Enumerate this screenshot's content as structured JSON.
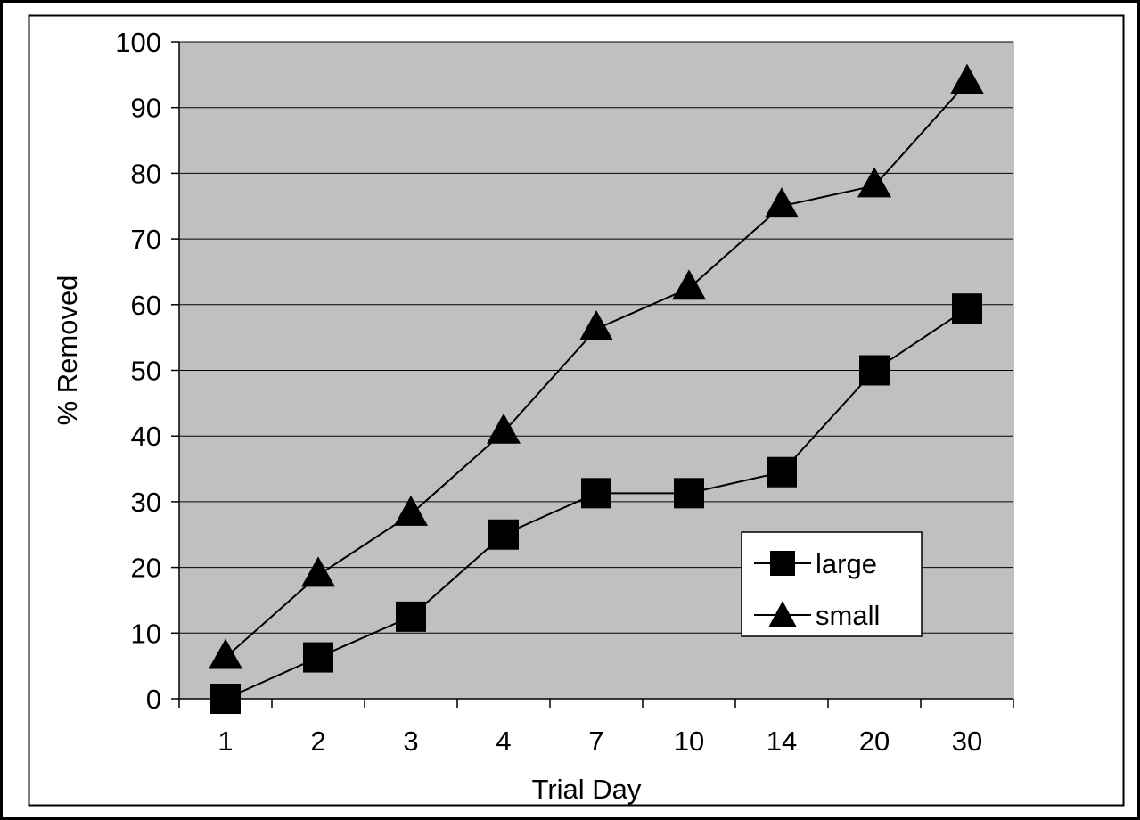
{
  "chart_data": {
    "type": "line",
    "title": "",
    "xlabel": "Trial Day",
    "ylabel": "% Removed",
    "categories": [
      "1",
      "2",
      "3",
      "4",
      "7",
      "10",
      "14",
      "20",
      "30"
    ],
    "yticks": [
      "0",
      "10",
      "20",
      "30",
      "40",
      "50",
      "60",
      "70",
      "80",
      "90",
      "100"
    ],
    "ylim": [
      0,
      100
    ],
    "grid": "horizontal",
    "legend_position": "lower-right",
    "colors": {
      "plot_background": "#c0c0c0",
      "line": "#000000",
      "marker": "#000000"
    },
    "series": [
      {
        "name": "large",
        "marker": "square",
        "values": [
          0,
          6.3,
          12.5,
          25,
          31.3,
          31.3,
          34.5,
          50,
          59.4
        ]
      },
      {
        "name": "small",
        "marker": "triangle",
        "values": [
          6.3,
          18.8,
          28.1,
          40.6,
          56.3,
          62.5,
          75,
          78.1,
          93.8
        ]
      }
    ]
  }
}
